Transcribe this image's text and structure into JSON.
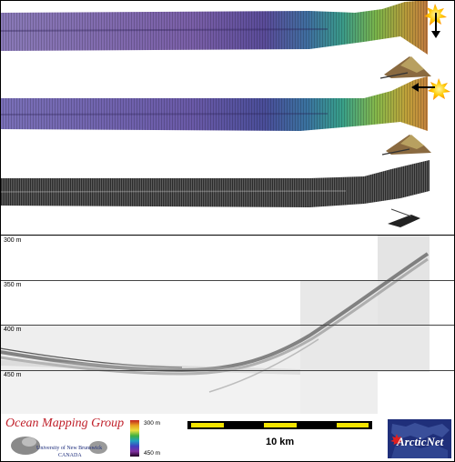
{
  "depth_labels": [
    "300 m",
    "350 m",
    "400 m",
    "450 m"
  ],
  "logo": {
    "title": "Ocean Mapping Group",
    "university": "University of New Brunswick",
    "country": "CANADA"
  },
  "colorbar": {
    "top_label": "300 m",
    "bottom_label": "450 m"
  },
  "scale_bar": {
    "label": "10 km"
  },
  "partner_logo": {
    "text": "ArcticNet",
    "icon": "maple-leaf-icon"
  },
  "colors": {
    "omg_red": "#c0202a",
    "scale_yellow": "#f4e400",
    "arctic_blue": "#1f2f7a"
  }
}
